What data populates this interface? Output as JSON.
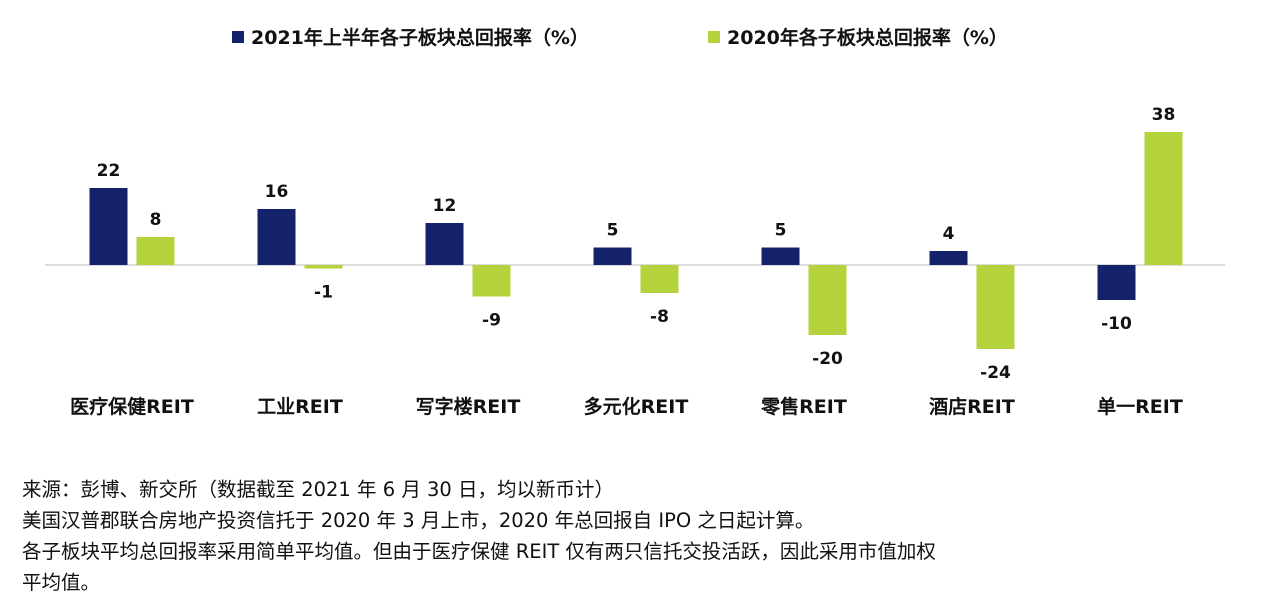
{
  "chart_data": {
    "type": "bar",
    "title": "",
    "xlabel": "",
    "ylabel": "",
    "ylim": [
      -26,
      40
    ],
    "grid": false,
    "legend_position": "top",
    "categories": [
      "医疗保健REIT",
      "工业REIT",
      "写字楼REIT",
      "多元化REIT",
      "零售REIT",
      "酒店REIT",
      "单一REIT"
    ],
    "series": [
      {
        "name": "2021年上半年各子板块总回报率（%）",
        "color": "#14236b",
        "values": [
          22,
          16,
          12,
          5,
          5,
          4,
          -10
        ]
      },
      {
        "name": "2020年各子板块总回报率（%）",
        "color": "#b5d33d",
        "values": [
          8,
          -1,
          -9,
          -8,
          -20,
          -24,
          38
        ]
      }
    ]
  },
  "notes": [
    "来源：彭博、新交所（数据截至 2021 年 6 月 30 日，均以新币计）",
    "美国汉普郡联合房地产投资信托于 2020 年 3 月上市，2020 年总回报自 IPO 之日起计算。",
    "各子板块平均总回报率采用简单平均值。但由于医疗保健 REIT 仅有两只信托交投活跃，因此采用市值加权",
    "平均值。"
  ]
}
